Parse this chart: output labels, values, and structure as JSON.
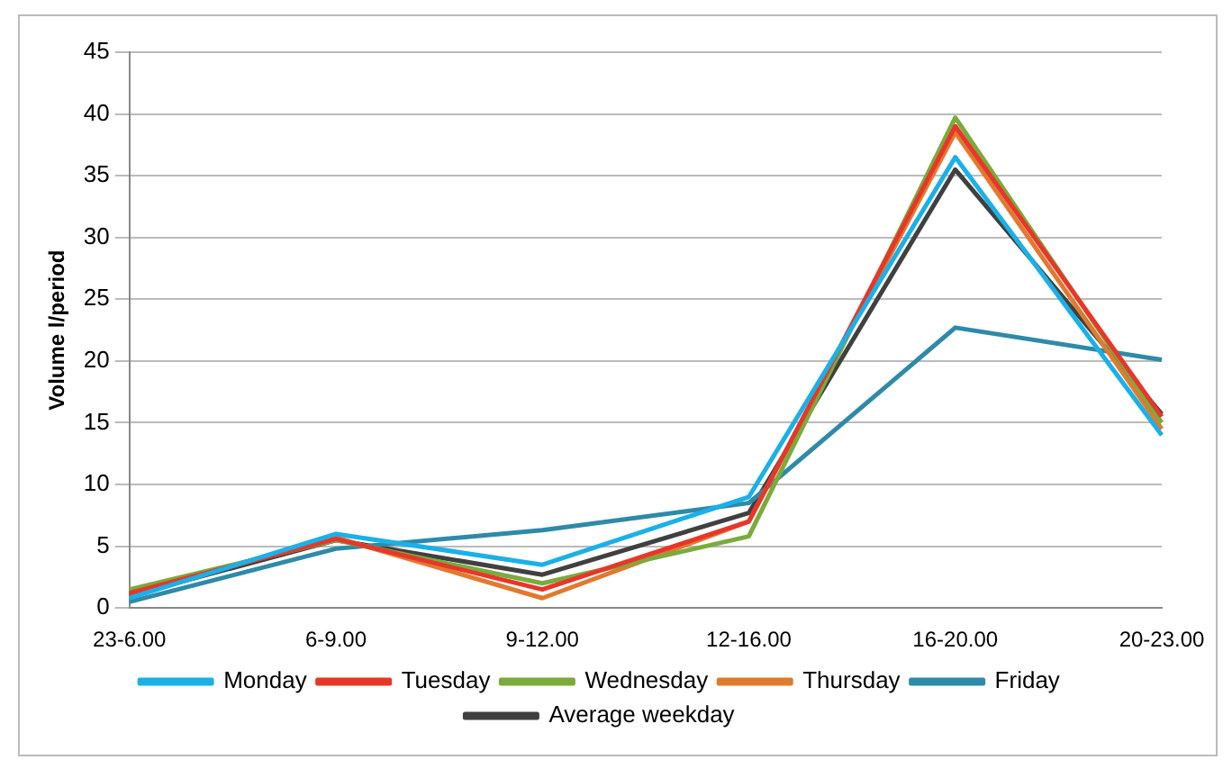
{
  "chart_data": {
    "type": "line",
    "ylabel": "Volume l/period",
    "categories": [
      "23-6.00",
      "6-9.00",
      "9-12.00",
      "12-16.00",
      "16-20.00",
      "20-23.00"
    ],
    "series": [
      {
        "name": "Monday",
        "color": "#1ab0e8",
        "values": [
          0.8,
          6,
          3.5,
          9,
          36.5,
          14
        ]
      },
      {
        "name": "Tuesday",
        "color": "#e8362a",
        "values": [
          1.2,
          5.6,
          1.5,
          7,
          39,
          15.5
        ]
      },
      {
        "name": "Wednesday",
        "color": "#7aab3c",
        "values": [
          1.5,
          5.5,
          2,
          5.8,
          39.7,
          15
        ]
      },
      {
        "name": "Thursday",
        "color": "#e07a2e",
        "values": [
          1.2,
          5.7,
          0.8,
          7,
          38.5,
          14.5
        ]
      },
      {
        "name": "Friday",
        "color": "#2e8aa8",
        "values": [
          0.5,
          4.8,
          6.3,
          8.5,
          22.7,
          20.1
        ]
      },
      {
        "name": "Average weekday",
        "color": "#404040",
        "values": [
          1,
          5.5,
          2.7,
          7.7,
          35.5,
          15.7
        ]
      }
    ],
    "ylim": [
      0,
      45
    ],
    "yticks": [
      0,
      5,
      10,
      15,
      20,
      25,
      30,
      35,
      40,
      45
    ],
    "grid": "y",
    "legend": "bottom",
    "marker": "none",
    "line_style": "solid"
  }
}
